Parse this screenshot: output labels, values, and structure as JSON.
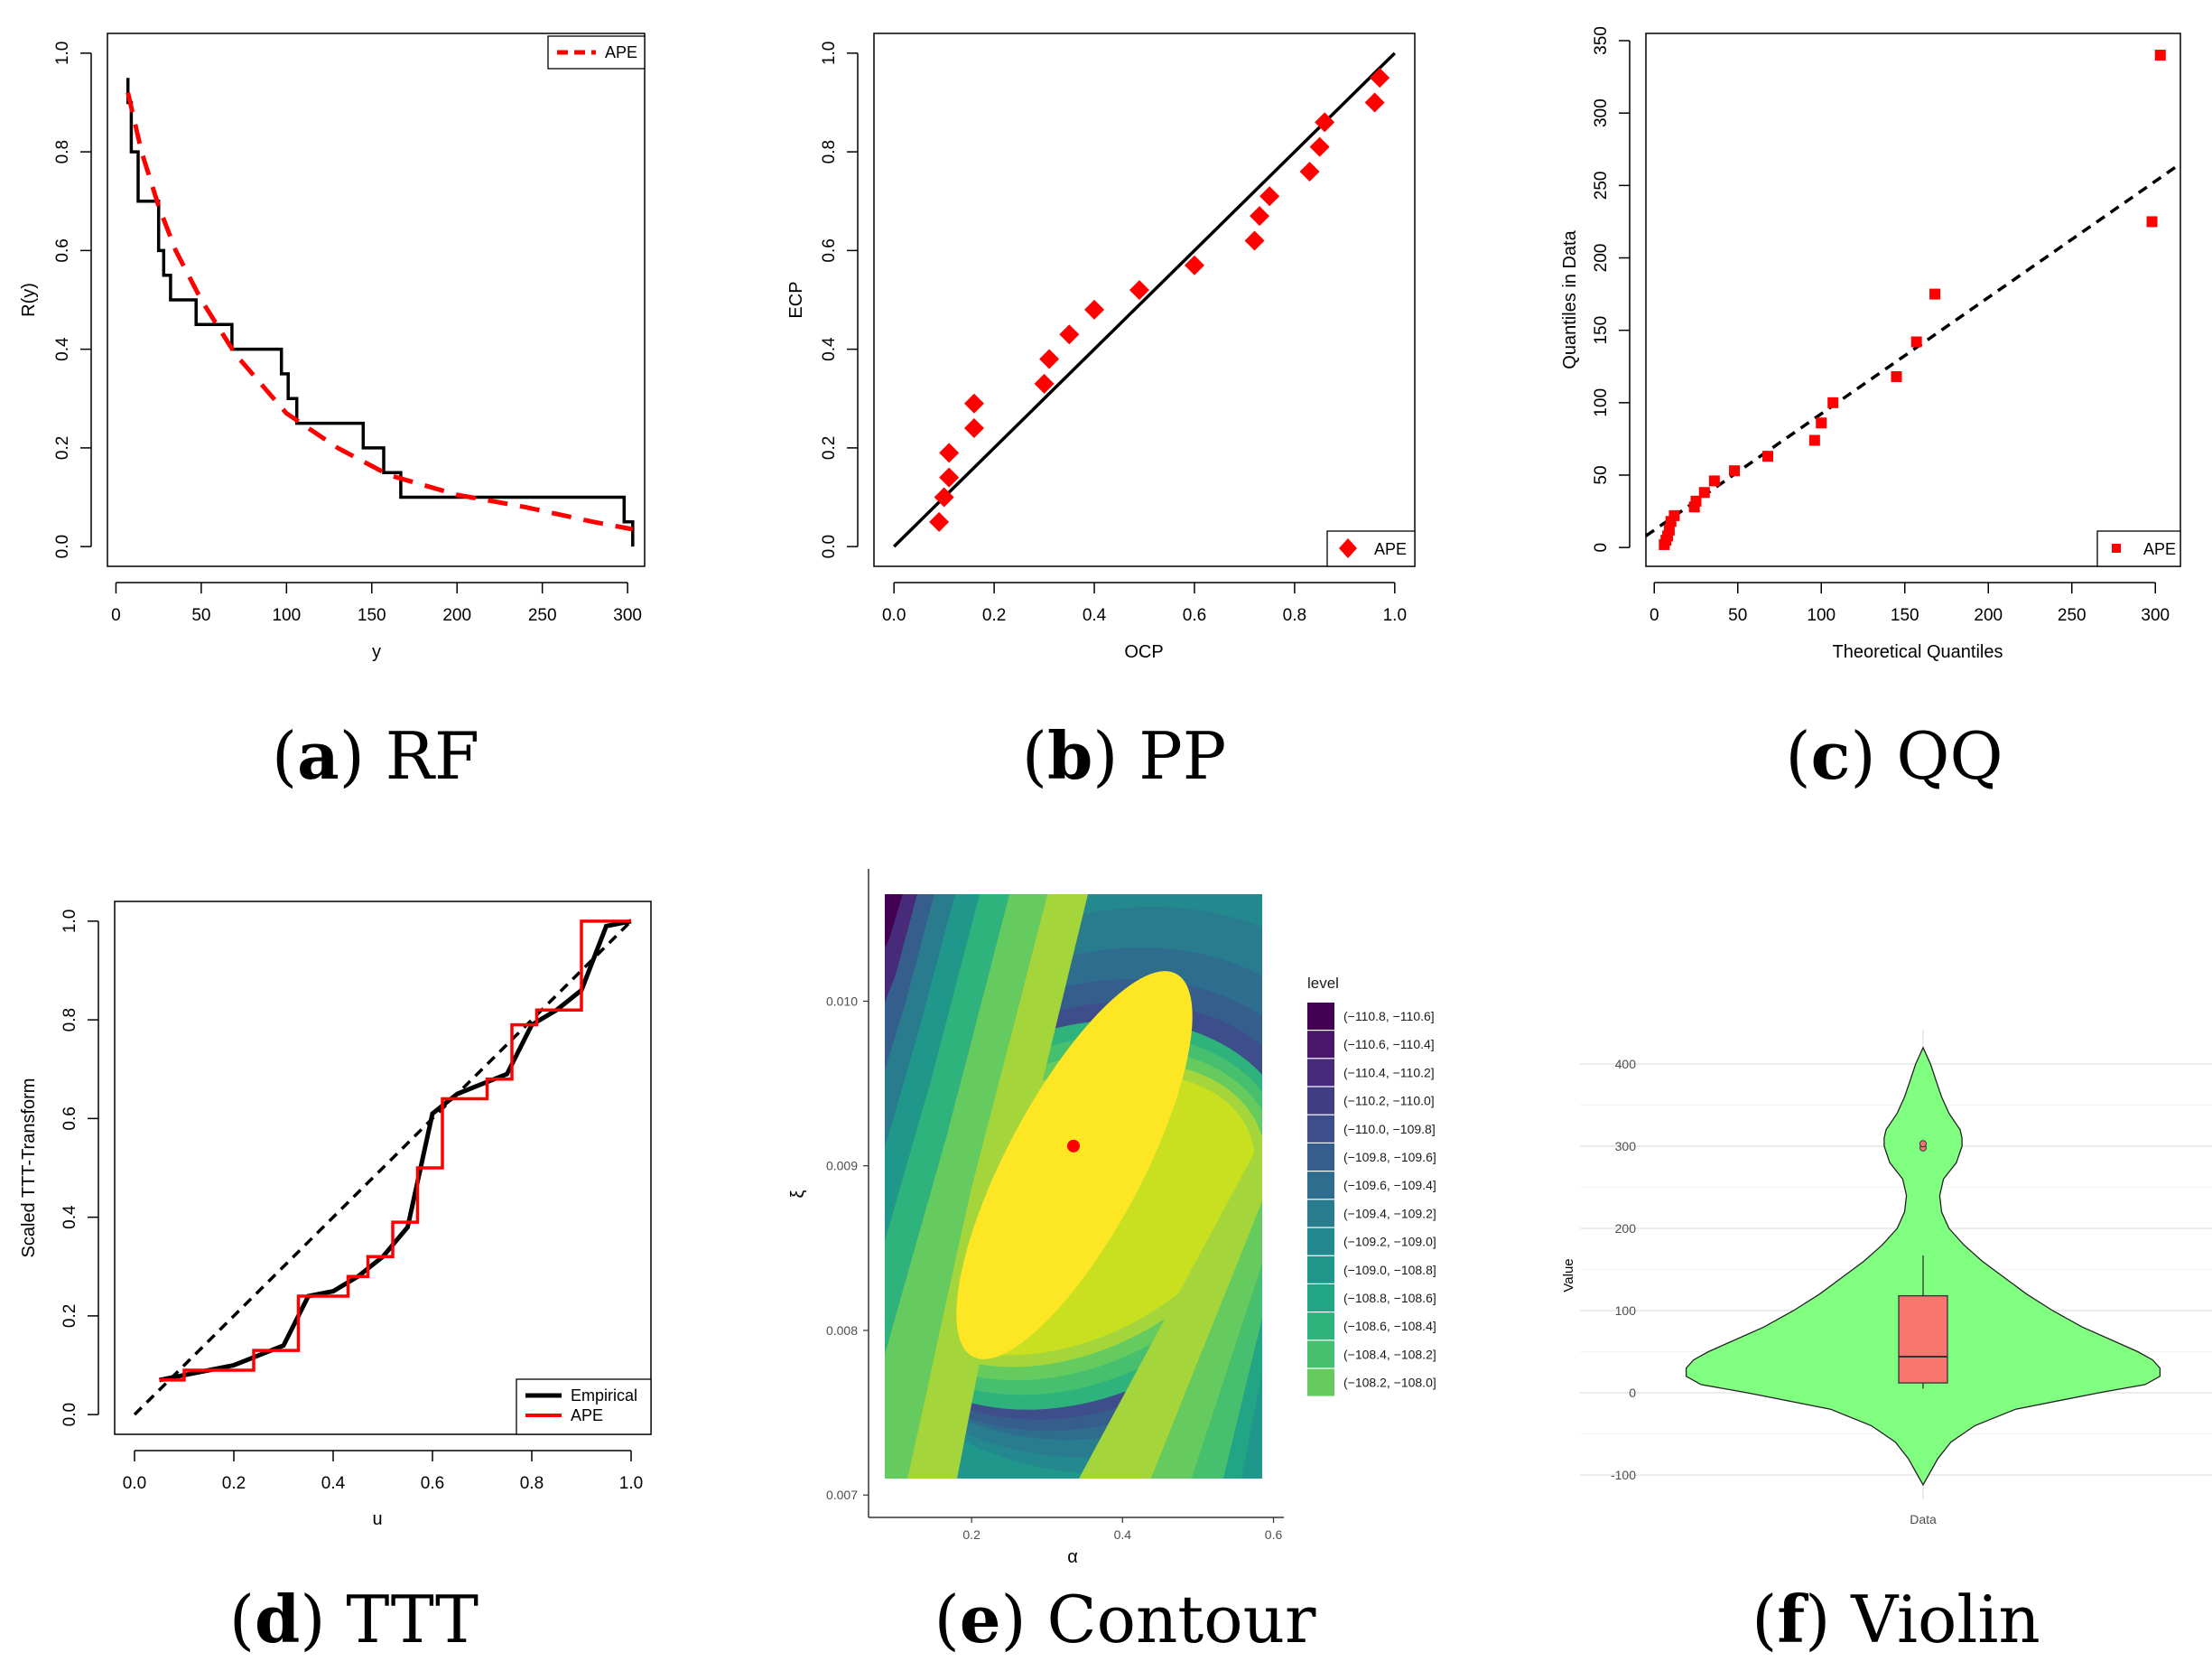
{
  "chart_data": [
    {
      "id": "rf",
      "type": "line",
      "caption": {
        "letter": "a",
        "text": "RF"
      },
      "xlabel": "y",
      "ylabel": "R(y)",
      "xlim": [
        -5,
        310
      ],
      "ylim": [
        -0.04,
        1.04
      ],
      "xticks": [
        0,
        50,
        100,
        150,
        200,
        250,
        300
      ],
      "yticks": [
        0.0,
        0.2,
        0.4,
        0.6,
        0.8,
        1.0
      ],
      "legend": {
        "position": "top-right",
        "entries": [
          "APE"
        ]
      },
      "series": [
        {
          "name": "Empirical",
          "style": "step",
          "color": "#000000",
          "x": [
            7,
            7,
            9,
            9,
            13,
            13,
            25,
            25,
            28,
            28,
            32,
            32,
            37,
            37,
            47,
            47,
            55,
            55,
            68,
            68,
            97,
            97,
            101,
            101,
            106,
            106,
            145,
            145,
            157,
            157,
            167,
            167,
            298,
            298,
            303,
            303
          ],
          "y": [
            0.95,
            0.9,
            0.9,
            0.8,
            0.8,
            0.7,
            0.7,
            0.6,
            0.6,
            0.55,
            0.55,
            0.5,
            0.5,
            0.5,
            0.5,
            0.45,
            0.45,
            0.45,
            0.45,
            0.4,
            0.4,
            0.35,
            0.35,
            0.3,
            0.3,
            0.25,
            0.25,
            0.2,
            0.2,
            0.15,
            0.15,
            0.1,
            0.1,
            0.05,
            0.05,
            0.0
          ]
        },
        {
          "name": "APE",
          "style": "dashed",
          "color": "#ff0000",
          "x": [
            7,
            15,
            25,
            35,
            50,
            70,
            100,
            130,
            160,
            200,
            240,
            280,
            303
          ],
          "y": [
            0.92,
            0.8,
            0.69,
            0.6,
            0.5,
            0.39,
            0.27,
            0.2,
            0.145,
            0.105,
            0.08,
            0.05,
            0.035
          ]
        }
      ]
    },
    {
      "id": "pp",
      "type": "scatter",
      "caption": {
        "letter": "b",
        "text": "PP"
      },
      "xlabel": "OCP",
      "ylabel": "ECP",
      "xlim": [
        -0.04,
        1.04
      ],
      "ylim": [
        -0.04,
        1.04
      ],
      "xticks": [
        0.0,
        0.2,
        0.4,
        0.6,
        0.8,
        1.0
      ],
      "yticks": [
        0.0,
        0.2,
        0.4,
        0.6,
        0.8,
        1.0
      ],
      "legend": {
        "position": "bottom-right",
        "entries": [
          "APE"
        ]
      },
      "reference_line": {
        "x": [
          0,
          1
        ],
        "y": [
          0,
          1
        ]
      },
      "series": [
        {
          "name": "APE",
          "color": "#ff0000",
          "marker": "diamond",
          "x": [
            0.09,
            0.1,
            0.11,
            0.11,
            0.16,
            0.16,
            0.3,
            0.31,
            0.35,
            0.4,
            0.49,
            0.6,
            0.72,
            0.73,
            0.75,
            0.83,
            0.85,
            0.86,
            0.96,
            0.97
          ],
          "y": [
            0.05,
            0.1,
            0.14,
            0.19,
            0.24,
            0.29,
            0.33,
            0.38,
            0.43,
            0.48,
            0.52,
            0.57,
            0.62,
            0.67,
            0.71,
            0.76,
            0.81,
            0.86,
            0.9,
            0.95
          ]
        }
      ]
    },
    {
      "id": "qq",
      "type": "scatter",
      "caption": {
        "letter": "c",
        "text": "QQ"
      },
      "xlabel": "Theoretical Quantiles",
      "ylabel": "Quantiles in Data",
      "xlim": [
        -5,
        315
      ],
      "ylim": [
        -13,
        355
      ],
      "xticks": [
        0,
        50,
        100,
        150,
        200,
        250,
        300
      ],
      "yticks": [
        0,
        50,
        100,
        150,
        200,
        250,
        300,
        350
      ],
      "legend": {
        "position": "bottom-right",
        "entries": [
          "APE"
        ]
      },
      "reference_line": {
        "x": [
          -5,
          315
        ],
        "y": [
          8,
          265
        ]
      },
      "series": [
        {
          "name": "APE",
          "color": "#ff0000",
          "marker": "square",
          "x": [
            6,
            7,
            8,
            9,
            10,
            12,
            24,
            25,
            30,
            36,
            48,
            68,
            96,
            100,
            107,
            145,
            157,
            168,
            298,
            303
          ],
          "y": [
            2,
            5,
            8,
            12,
            18,
            22,
            28,
            32,
            38,
            46,
            53,
            63,
            74,
            86,
            100,
            118,
            142,
            175,
            225,
            340
          ]
        }
      ]
    },
    {
      "id": "ttt",
      "type": "line",
      "caption": {
        "letter": "d",
        "text": "TTT"
      },
      "xlabel": "u",
      "ylabel": "Scaled TTT-Transform",
      "xlim": [
        -0.04,
        1.04
      ],
      "ylim": [
        -0.04,
        1.04
      ],
      "xticks": [
        0.0,
        0.2,
        0.4,
        0.6,
        0.8,
        1.0
      ],
      "yticks": [
        0.0,
        0.2,
        0.4,
        0.6,
        0.8,
        1.0
      ],
      "legend": {
        "position": "bottom-right",
        "entries": [
          "Empirical",
          "APE"
        ]
      },
      "reference_line": {
        "x": [
          0,
          1
        ],
        "y": [
          0,
          1
        ]
      },
      "series": [
        {
          "name": "Empirical",
          "style": "solid",
          "color": "#000000",
          "x": [
            0.05,
            0.1,
            0.15,
            0.2,
            0.25,
            0.3,
            0.35,
            0.4,
            0.45,
            0.5,
            0.55,
            0.6,
            0.65,
            0.7,
            0.75,
            0.8,
            0.85,
            0.9,
            0.95,
            1.0
          ],
          "y": [
            0.07,
            0.08,
            0.09,
            0.1,
            0.12,
            0.14,
            0.24,
            0.25,
            0.28,
            0.32,
            0.38,
            0.61,
            0.65,
            0.67,
            0.69,
            0.79,
            0.82,
            0.86,
            0.99,
            1.0
          ]
        },
        {
          "name": "APE",
          "style": "step",
          "color": "#ff0000",
          "x": [
            0.05,
            0.1,
            0.1,
            0.15,
            0.15,
            0.24,
            0.24,
            0.33,
            0.33,
            0.43,
            0.43,
            0.47,
            0.47,
            0.52,
            0.52,
            0.57,
            0.57,
            0.62,
            0.62,
            0.71,
            0.71,
            0.76,
            0.76,
            0.81,
            0.81,
            0.9,
            0.9,
            0.95,
            0.95,
            1.0
          ],
          "y": [
            0.07,
            0.07,
            0.09,
            0.09,
            0.09,
            0.09,
            0.13,
            0.13,
            0.24,
            0.24,
            0.28,
            0.28,
            0.32,
            0.32,
            0.39,
            0.39,
            0.5,
            0.5,
            0.64,
            0.64,
            0.68,
            0.68,
            0.79,
            0.79,
            0.82,
            0.82,
            1.0,
            1.0,
            1.0,
            1.0
          ]
        }
      ]
    },
    {
      "id": "contour",
      "type": "heatmap",
      "caption": {
        "letter": "e",
        "text": "Contour"
      },
      "xlabel": "α",
      "ylabel": "ξ",
      "xlim": [
        0.05,
        0.6
      ],
      "ylim": [
        0.0069,
        0.01075
      ],
      "xticks": [
        0.2,
        0.4,
        0.6
      ],
      "yticks": [
        0.007,
        0.008,
        0.009,
        0.01
      ],
      "ytick_labels": [
        "0.007",
        "0.008",
        "0.009",
        "0.010"
      ],
      "xtick_labels": [
        "0.2",
        "0.4",
        "0.6"
      ],
      "data_region": {
        "x": [
          0.085,
          0.585
        ],
        "y": [
          0.0071,
          0.01065
        ]
      },
      "mle_point": {
        "x": 0.335,
        "y": 0.00912
      },
      "legend_title": "level",
      "levels": [
        {
          "label": "(−110.8, −110.6]",
          "color": "#440154"
        },
        {
          "label": "(−110.6, −110.4]",
          "color": "#481769"
        },
        {
          "label": "(−110.4, −110.2]",
          "color": "#472A7A"
        },
        {
          "label": "(−110.2, −110.0]",
          "color": "#433D84"
        },
        {
          "label": "(−110.0, −109.8]",
          "color": "#3D4E8A"
        },
        {
          "label": "(−109.8, −109.6]",
          "color": "#355E8D"
        },
        {
          "label": "(−109.6, −109.4]",
          "color": "#2E6D8E"
        },
        {
          "label": "(−109.4, −109.2]",
          "color": "#297B8E"
        },
        {
          "label": "(−109.2, −109.0]",
          "color": "#23898E"
        },
        {
          "label": "(−109.0, −108.8]",
          "color": "#1F978B"
        },
        {
          "label": "(−108.8, −108.6]",
          "color": "#21A585"
        },
        {
          "label": "(−108.6, −108.4]",
          "color": "#2EB37C"
        },
        {
          "label": "(−108.4, −108.2]",
          "color": "#46C06F"
        },
        {
          "label": "(−108.2, −108.0]",
          "color": "#65CB5E"
        }
      ]
    },
    {
      "id": "violin",
      "type": "violin",
      "caption": {
        "letter": "f",
        "text": "Violin"
      },
      "xlabel": "Data",
      "ylabel": "Value",
      "ylim": [
        -120,
        430
      ],
      "yticks": [
        -100,
        0,
        100,
        200,
        300,
        400
      ],
      "violin_color": "#80ff80",
      "box_color": "#f8766d",
      "density_profile": {
        "y": [
          -112,
          -100,
          -80,
          -60,
          -40,
          -20,
          0,
          10,
          20,
          30,
          40,
          50,
          60,
          80,
          100,
          120,
          140,
          160,
          180,
          200,
          220,
          240,
          260,
          280,
          300,
          310,
          320,
          340,
          360,
          380,
          400,
          420
        ],
        "half_width": [
          0,
          3,
          8,
          15,
          28,
          50,
          95,
          120,
          128,
          128,
          124,
          116,
          106,
          86,
          70,
          56,
          44,
          32,
          22,
          14,
          10,
          9,
          11,
          18,
          21,
          21,
          20,
          14,
          10,
          7,
          4,
          0
        ]
      },
      "box": {
        "q1": 12,
        "median": 44,
        "q3": 118,
        "whisker_low": 5,
        "whisker_high": 167
      },
      "outliers": [
        298,
        303
      ]
    }
  ]
}
